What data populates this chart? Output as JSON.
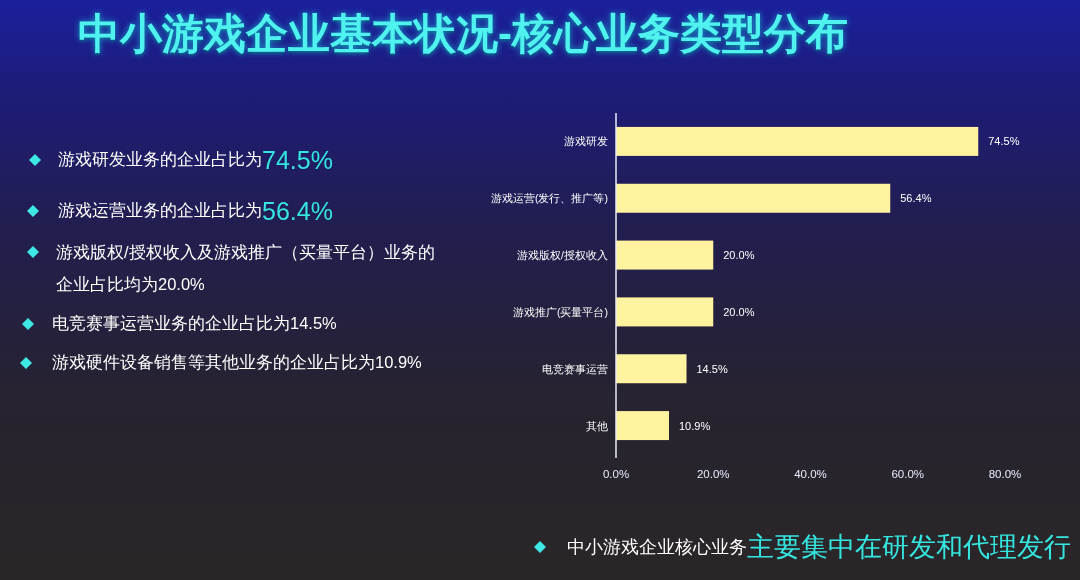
{
  "chart_data": {
    "type": "bar",
    "orientation": "horizontal",
    "title": "中小游戏企业基本状况-核心业务类型分布",
    "categories": [
      "游戏研发",
      "游戏运营(发行、推广等)",
      "游戏版权/授权收入",
      "游戏推广(买量平台)",
      "电竞赛事运营",
      "其他"
    ],
    "values": [
      74.5,
      56.4,
      20.0,
      20.0,
      14.5,
      10.9
    ],
    "value_labels": [
      "74.5%",
      "56.4%",
      "20.0%",
      "20.0%",
      "14.5%",
      "10.9%"
    ],
    "color": "#fff3a0",
    "xlim": [
      0,
      80
    ],
    "xticks": [
      {
        "value": 0,
        "label": "0.0%"
      },
      {
        "value": 20,
        "label": "20.0%"
      },
      {
        "value": 40,
        "label": "40.0%"
      },
      {
        "value": 60,
        "label": "60.0%"
      },
      {
        "value": 80,
        "label": "80.0%"
      }
    ],
    "annotations": [
      "游戏研发业务的企业占比为",
      "74.5%",
      "游戏运营业务的企业占比为",
      "56.4%",
      "游戏版权/授权收入及游戏推广（买量平台）业务的企业占比均为20.0%",
      "电竞赛事运营业务的企业占比为14.5%",
      "游戏硬件设备销售等其他业务的企业占比为10.9%",
      "中小游戏企业核心业务",
      "主要集中在研发和代理发行"
    ]
  }
}
